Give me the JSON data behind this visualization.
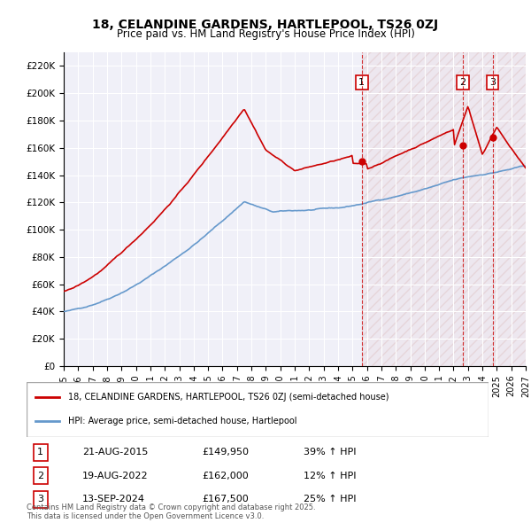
{
  "title1": "18, CELANDINE GARDENS, HARTLEPOOL, TS26 0ZJ",
  "title2": "Price paid vs. HM Land Registry's House Price Index (HPI)",
  "ylabel_ticks": [
    "£0",
    "£20K",
    "£40K",
    "£60K",
    "£80K",
    "£100K",
    "£120K",
    "£140K",
    "£160K",
    "£180K",
    "£200K",
    "£220K"
  ],
  "ytick_values": [
    0,
    20000,
    40000,
    60000,
    80000,
    100000,
    120000,
    140000,
    160000,
    180000,
    200000,
    220000
  ],
  "xmin": 1995.0,
  "xmax": 2027.0,
  "ymin": 0,
  "ymax": 230000,
  "legend_line1": "18, CELANDINE GARDENS, HARTLEPOOL, TS26 0ZJ (semi-detached house)",
  "legend_line2": "HPI: Average price, semi-detached house, Hartlepool",
  "sale1_date": "21-AUG-2015",
  "sale1_year": 2015.64,
  "sale1_price": 149950,
  "sale1_label": "£149,950",
  "sale1_pct": "39% ↑ HPI",
  "sale2_date": "19-AUG-2022",
  "sale2_year": 2022.64,
  "sale2_price": 162000,
  "sale2_label": "£162,000",
  "sale2_pct": "12% ↑ HPI",
  "sale3_date": "13-SEP-2024",
  "sale3_year": 2024.71,
  "sale3_price": 167500,
  "sale3_label": "£167,500",
  "sale3_pct": "25% ↑ HPI",
  "red_color": "#cc0000",
  "blue_color": "#6699cc",
  "hatch_color": "#ddaaaa",
  "footer": "Contains HM Land Registry data © Crown copyright and database right 2025.\nThis data is licensed under the Open Government Licence v3.0."
}
